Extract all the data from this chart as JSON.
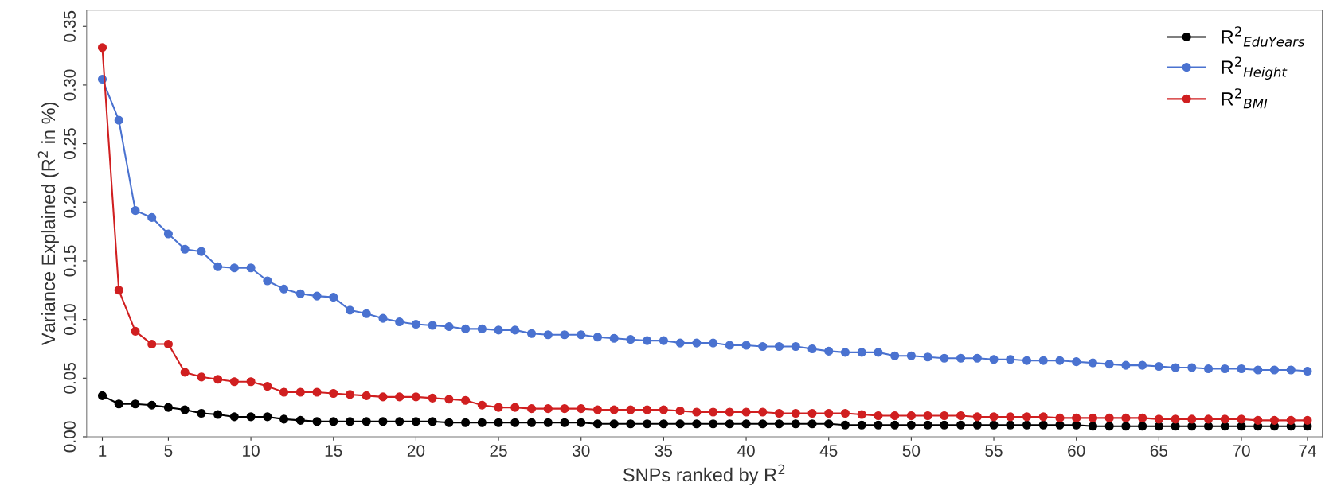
{
  "chart_data": {
    "type": "line",
    "xlabel": "SNPs ranked by R$^{2}$",
    "ylabel": "Variance Explained (R$^{2}$ in %)",
    "x": [
      1,
      2,
      3,
      4,
      5,
      6,
      7,
      8,
      9,
      10,
      11,
      12,
      13,
      14,
      15,
      16,
      17,
      18,
      19,
      20,
      21,
      22,
      23,
      24,
      25,
      26,
      27,
      28,
      29,
      30,
      31,
      32,
      33,
      34,
      35,
      36,
      37,
      38,
      39,
      40,
      41,
      42,
      43,
      44,
      45,
      46,
      47,
      48,
      49,
      50,
      51,
      52,
      53,
      54,
      55,
      56,
      57,
      58,
      59,
      60,
      61,
      62,
      63,
      64,
      65,
      66,
      67,
      68,
      69,
      70,
      71,
      72,
      73,
      74
    ],
    "xlim": [
      0.05,
      74.9
    ],
    "xticks": [
      1,
      5,
      10,
      15,
      20,
      25,
      30,
      35,
      40,
      45,
      50,
      55,
      60,
      65,
      70,
      74
    ],
    "ylim": [
      0,
      0.364
    ],
    "yticks": [
      {
        "value": 0,
        "label": "0.00"
      },
      {
        "value": 0.05,
        "label": "0.05"
      },
      {
        "value": 0.1,
        "label": "0.10"
      },
      {
        "value": 0.15,
        "label": "0.15"
      },
      {
        "value": 0.2,
        "label": "0.20"
      },
      {
        "value": 0.25,
        "label": "0.25"
      },
      {
        "value": 0.3,
        "label": "0.30"
      },
      {
        "value": 0.35,
        "label": "0.35"
      }
    ],
    "grid": false,
    "legend": "top right",
    "marker": "circle",
    "line_style": "solid",
    "series": [
      {
        "name": "R$^{2}$$_{EduYears}$",
        "color": "#000000",
        "values": [
          0.035,
          0.028,
          0.028,
          0.027,
          0.025,
          0.023,
          0.02,
          0.019,
          0.017,
          0.017,
          0.017,
          0.015,
          0.014,
          0.013,
          0.013,
          0.013,
          0.013,
          0.013,
          0.013,
          0.013,
          0.013,
          0.012,
          0.012,
          0.012,
          0.012,
          0.012,
          0.012,
          0.012,
          0.012,
          0.012,
          0.011,
          0.011,
          0.011,
          0.011,
          0.011,
          0.011,
          0.011,
          0.011,
          0.011,
          0.011,
          0.011,
          0.011,
          0.011,
          0.011,
          0.011,
          0.01,
          0.01,
          0.01,
          0.01,
          0.01,
          0.01,
          0.01,
          0.01,
          0.01,
          0.01,
          0.01,
          0.01,
          0.01,
          0.01,
          0.01,
          0.009,
          0.009,
          0.009,
          0.009,
          0.009,
          0.009,
          0.009,
          0.009,
          0.009,
          0.009,
          0.009,
          0.009,
          0.009,
          0.009
        ]
      },
      {
        "name": "R$^{2}$$_{Height}$",
        "color": "#4a72d0",
        "values": [
          0.305,
          0.27,
          0.193,
          0.187,
          0.173,
          0.16,
          0.158,
          0.145,
          0.144,
          0.144,
          0.133,
          0.126,
          0.122,
          0.12,
          0.119,
          0.108,
          0.105,
          0.101,
          0.098,
          0.096,
          0.095,
          0.094,
          0.092,
          0.092,
          0.091,
          0.091,
          0.088,
          0.087,
          0.087,
          0.087,
          0.085,
          0.084,
          0.083,
          0.082,
          0.082,
          0.08,
          0.08,
          0.08,
          0.078,
          0.078,
          0.077,
          0.077,
          0.077,
          0.075,
          0.073,
          0.072,
          0.072,
          0.072,
          0.069,
          0.069,
          0.068,
          0.067,
          0.067,
          0.067,
          0.066,
          0.066,
          0.065,
          0.065,
          0.065,
          0.064,
          0.063,
          0.062,
          0.061,
          0.061,
          0.06,
          0.059,
          0.059,
          0.058,
          0.058,
          0.058,
          0.057,
          0.057,
          0.057,
          0.056
        ]
      },
      {
        "name": "R$^{2}$$_{BMI}$",
        "color": "#d01f20",
        "values": [
          0.332,
          0.125,
          0.09,
          0.079,
          0.079,
          0.055,
          0.051,
          0.049,
          0.047,
          0.047,
          0.043,
          0.038,
          0.038,
          0.038,
          0.037,
          0.036,
          0.035,
          0.034,
          0.034,
          0.034,
          0.033,
          0.032,
          0.031,
          0.027,
          0.025,
          0.025,
          0.024,
          0.024,
          0.024,
          0.024,
          0.023,
          0.023,
          0.023,
          0.023,
          0.023,
          0.022,
          0.021,
          0.021,
          0.021,
          0.021,
          0.021,
          0.02,
          0.02,
          0.02,
          0.02,
          0.02,
          0.019,
          0.018,
          0.018,
          0.018,
          0.018,
          0.018,
          0.018,
          0.017,
          0.017,
          0.017,
          0.017,
          0.017,
          0.016,
          0.016,
          0.016,
          0.016,
          0.016,
          0.016,
          0.015,
          0.015,
          0.015,
          0.015,
          0.015,
          0.015,
          0.014,
          0.014,
          0.014,
          0.014
        ]
      }
    ]
  }
}
